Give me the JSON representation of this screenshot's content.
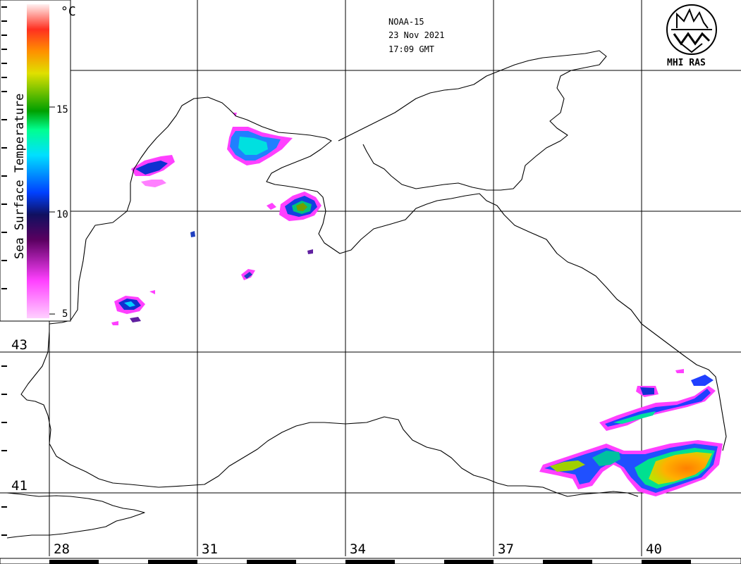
{
  "satellite": "NOAA-15",
  "date": "23 Nov 2021",
  "time": "17:09 GMT",
  "logo_text": "MHI RAS",
  "colorbar": {
    "title": "Sea Surface Temperature",
    "unit": "°C",
    "ticks": [
      "15",
      "10",
      "5"
    ],
    "tick_values": [
      15,
      10,
      5
    ],
    "range": [
      5,
      20
    ]
  },
  "longitudes": [
    "28",
    "31",
    "34",
    "37",
    "40"
  ],
  "latitudes": [
    "43",
    "41"
  ],
  "colors": {
    "land_outline": "#000000",
    "background": "#ffffff"
  }
}
